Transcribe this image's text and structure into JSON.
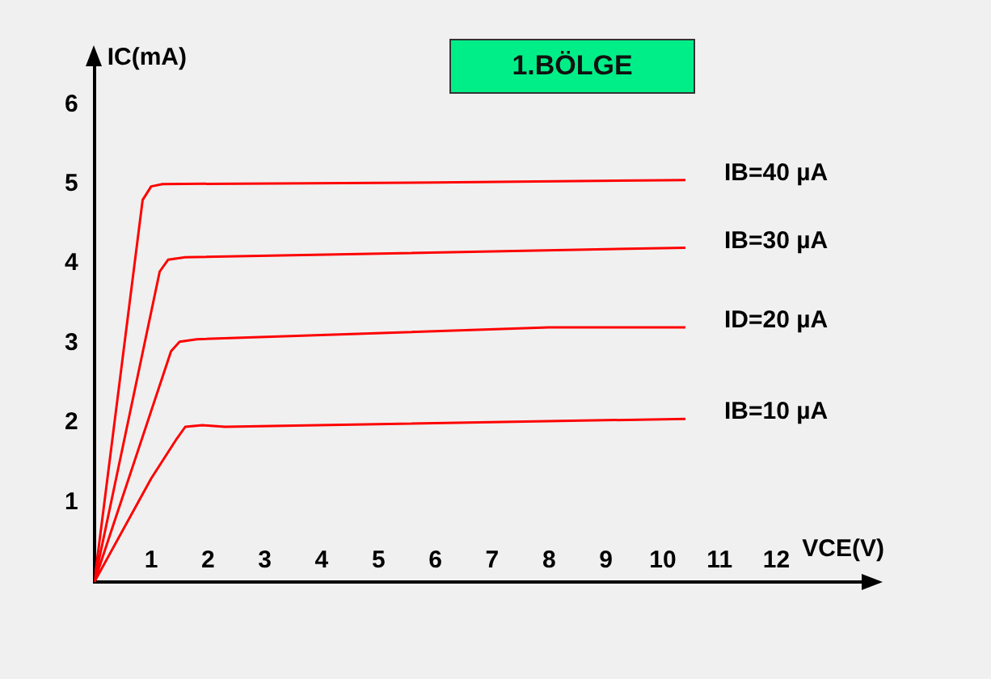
{
  "chart_data": {
    "type": "line",
    "title": "1.BÖLGE",
    "xlabel": "VCE(V)",
    "ylabel": "IC(mA)",
    "xlim": [
      0,
      13.5
    ],
    "xticks": [
      1,
      2,
      3,
      4,
      5,
      6,
      7,
      8,
      9,
      10,
      11,
      12
    ],
    "ylim": [
      0,
      6.5
    ],
    "yticks": [
      1,
      2,
      3,
      4,
      5,
      6
    ],
    "grid": false,
    "legend": false,
    "marker": "none",
    "line_style": "solid",
    "series": [
      {
        "name": "IB=40 µA",
        "color": "#ff0000",
        "x": [
          0,
          0.85,
          1.0,
          1.2,
          6,
          10.4
        ],
        "values": [
          0,
          4.8,
          4.97,
          5.0,
          5.02,
          5.05
        ]
      },
      {
        "name": "IB=30 µA",
        "color": "#ff0000",
        "x": [
          0,
          1.15,
          1.3,
          1.6,
          10.4
        ],
        "values": [
          0,
          3.9,
          4.05,
          4.08,
          4.2
        ]
      },
      {
        "name": "ID=20 µA",
        "color": "#ff0000",
        "x": [
          0,
          1.35,
          1.5,
          1.8,
          8,
          10.4
        ],
        "values": [
          0,
          2.9,
          3.02,
          3.05,
          3.2,
          3.2
        ]
      },
      {
        "name": "IB=10 µA",
        "color": "#ff0000",
        "x": [
          0,
          1.0,
          1.45,
          1.6,
          1.9,
          2.3,
          10.4
        ],
        "values": [
          0,
          1.3,
          1.8,
          1.95,
          1.97,
          1.95,
          2.05
        ]
      }
    ]
  }
}
